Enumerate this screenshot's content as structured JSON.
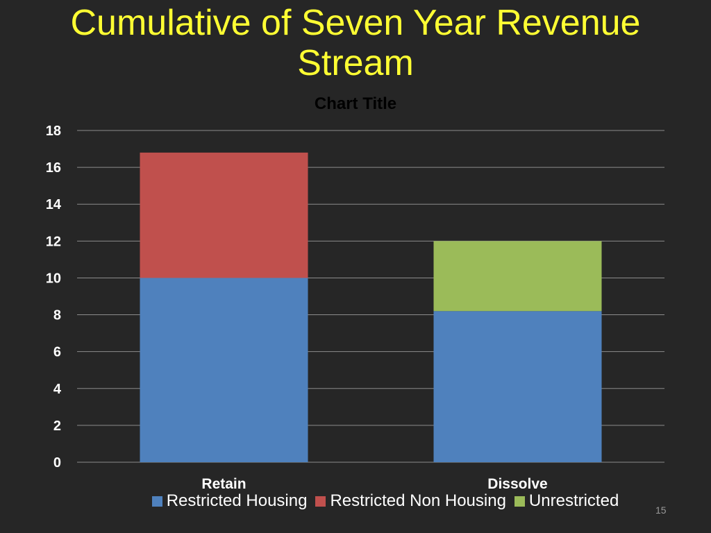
{
  "slide": {
    "title_line1": "Cumulative of Seven Year Revenue",
    "title_line2": "Stream",
    "slide_number": "15"
  },
  "chart_data": {
    "type": "bar",
    "stacked": true,
    "title": "Chart Title",
    "categories": [
      "Retain",
      "Dissolve"
    ],
    "series": [
      {
        "name": "Restricted Housing",
        "color": "#4f81bd",
        "values": [
          10,
          8.2
        ]
      },
      {
        "name": "Restricted Non Housing",
        "color": "#c0504d",
        "values": [
          6.8,
          0
        ]
      },
      {
        "name": "Unrestricted",
        "color": "#9bbb59",
        "values": [
          0,
          3.8
        ]
      }
    ],
    "ylim": [
      0,
      18
    ],
    "yticks": [
      0,
      2,
      4,
      6,
      8,
      10,
      12,
      14,
      16,
      18
    ],
    "grid": true,
    "legend_position": "bottom",
    "xlabel": "",
    "ylabel": ""
  }
}
